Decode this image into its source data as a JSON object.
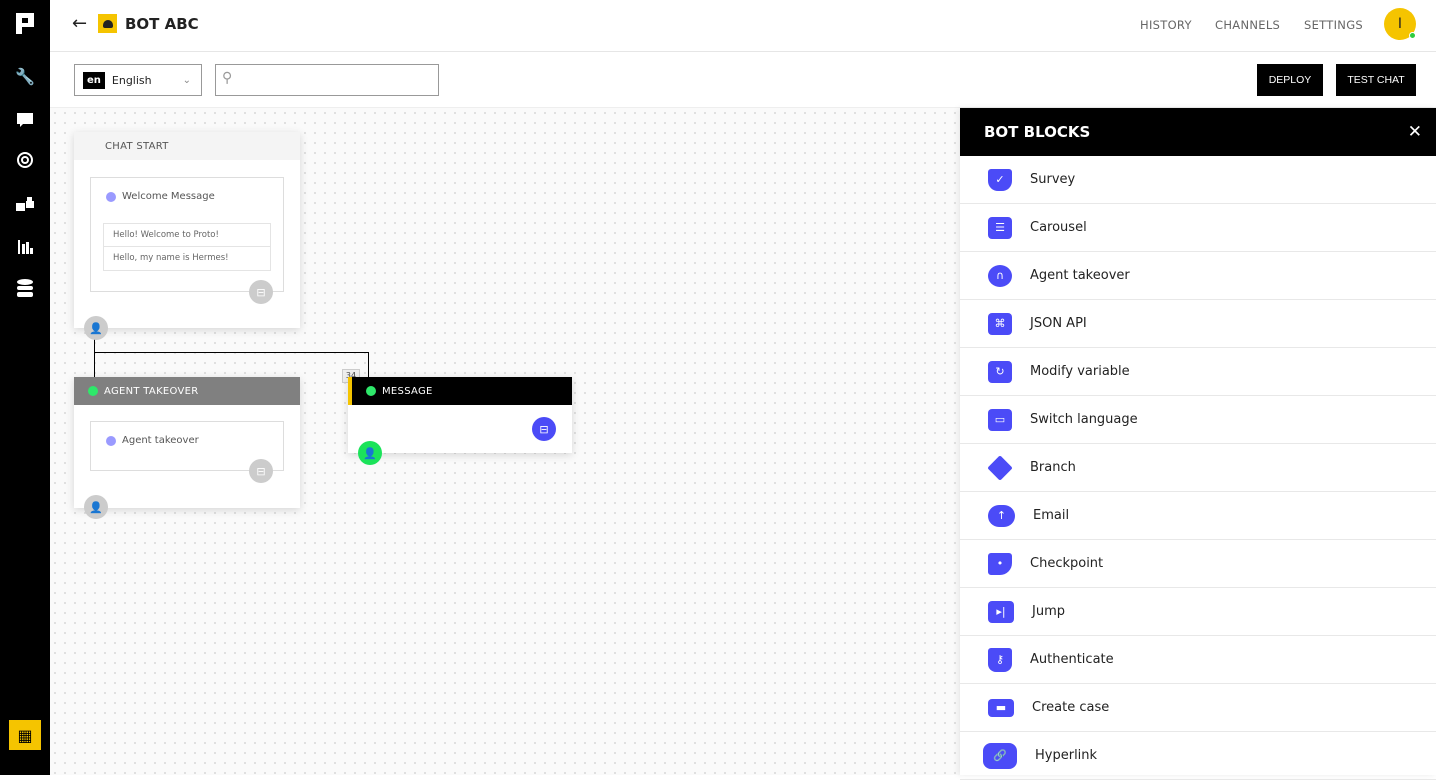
{
  "sidebar": {
    "items": [
      {
        "icon": "logo-icon"
      },
      {
        "icon": "wrench-icon"
      },
      {
        "icon": "chat-icon"
      },
      {
        "icon": "target-icon"
      },
      {
        "icon": "blocks-icon"
      },
      {
        "icon": "analytics-icon"
      },
      {
        "icon": "database-icon"
      },
      {
        "icon": "building-icon"
      }
    ]
  },
  "header": {
    "title": "BOT ABC",
    "nav": [
      "HISTORY",
      "CHANNELS",
      "SETTINGS"
    ],
    "avatar": "I"
  },
  "toolbar": {
    "lang_code": "en",
    "lang": "English",
    "search_placeholder": "",
    "deploy": "DEPLOY",
    "test_chat": "TEST CHAT"
  },
  "canvas": {
    "chat_start": {
      "title": "CHAT START",
      "card_title": "Welcome Message",
      "messages": [
        "Hello! Welcome to Proto!",
        "Hello, my name is Hermes!"
      ]
    },
    "agent_takeover": {
      "title": "AGENT TAKEOVER",
      "card_title": "Agent takeover"
    },
    "message": {
      "title": "MESSAGE",
      "badge": "34"
    }
  },
  "panel": {
    "title": "BOT BLOCKS",
    "items": [
      "Survey",
      "Carousel",
      "Agent takeover",
      "JSON API",
      "Modify variable",
      "Switch language",
      "Branch",
      "Email",
      "Checkpoint",
      "Jump",
      "Authenticate",
      "Create case",
      "Hyperlink"
    ]
  },
  "colors": {
    "accent": "#4b4bf7",
    "brand": "#f5c400",
    "green": "#1be35a"
  }
}
